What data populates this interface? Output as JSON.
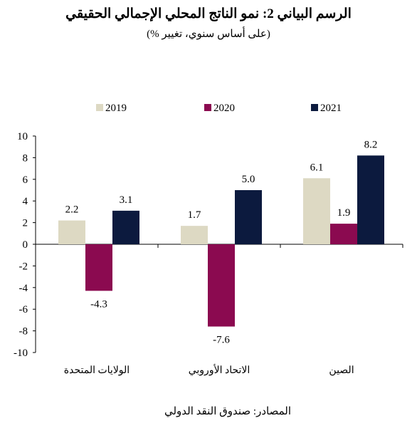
{
  "chart_title": "الرسم البياني 2: نمو الناتج المحلي الإجمالي الحقيقي",
  "chart_subtitle": "(على أساس سنوي، تغيير %)",
  "source_note": "المصادر: صندوق النقد الدولي",
  "chart_data": {
    "type": "bar",
    "categories": [
      "الولايات المتحدة",
      "الاتحاد الأوروبي",
      "الصين"
    ],
    "series": [
      {
        "name": "2019",
        "values": [
          2.2,
          1.7,
          6.1
        ],
        "labels": [
          "2.2",
          "1.7",
          "6.1"
        ],
        "color": "#ddd9c3"
      },
      {
        "name": "2020",
        "values": [
          -4.3,
          -7.6,
          1.9
        ],
        "labels": [
          "-4.3",
          "-7.6",
          "1.9"
        ],
        "color": "#8b0a50"
      },
      {
        "name": "2021",
        "values": [
          3.1,
          5.0,
          8.2
        ],
        "labels": [
          "3.1",
          "5.0",
          "8.2"
        ],
        "color": "#0c1a3e"
      }
    ],
    "ylim": [
      -10,
      10
    ],
    "yticks": [
      "10",
      "8",
      "6",
      "4",
      "2",
      "0",
      "-2",
      "-4",
      "-6",
      "-8",
      "-10"
    ],
    "grid": false,
    "legend": "top"
  }
}
